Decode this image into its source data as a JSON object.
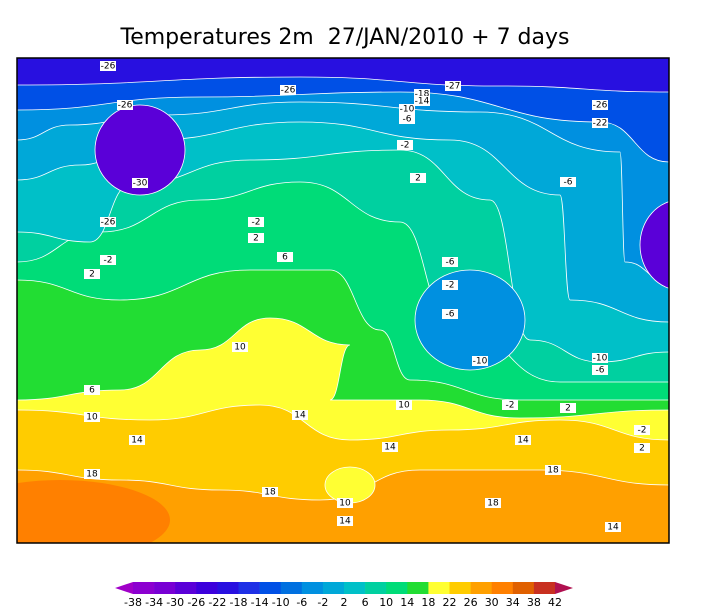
{
  "header": {
    "title": "Temperatures 2m  27/JAN/2010 + 7 days"
  },
  "map": {
    "contour_labels": [
      "-26",
      "-26",
      "-26",
      "-27",
      "-18",
      "-14",
      "-10",
      "-6",
      "-2",
      "2",
      "-26",
      "-22",
      "-6",
      "-30",
      "-26",
      "-2",
      "2",
      "-2",
      "2",
      "6",
      "10",
      "6",
      "10",
      "14",
      "14",
      "10",
      "18",
      "18",
      "14",
      "10",
      "14",
      "-6",
      "-2",
      "-6",
      "-10",
      "-10",
      "-6",
      "2",
      "-2",
      "14",
      "18",
      "18",
      "14",
      "-2",
      "2"
    ]
  },
  "colorbar": {
    "ticks": [
      -38,
      -34,
      -30,
      -26,
      -22,
      -18,
      -14,
      -10,
      -6,
      -2,
      2,
      6,
      10,
      14,
      18,
      22,
      26,
      30,
      34,
      38,
      42
    ],
    "colors": [
      "#a000c8",
      "#8c00d0",
      "#7800d4",
      "#5a00d8",
      "#3c00dc",
      "#2810e0",
      "#1e30e6",
      "#0050e6",
      "#0070e0",
      "#0090e0",
      "#00a8d8",
      "#00c0c8",
      "#00d0a0",
      "#00dc78",
      "#22dd33",
      "#ffff33",
      "#ffcc00",
      "#ffa000",
      "#ff8000",
      "#e06000",
      "#c83020",
      "#b01050"
    ]
  }
}
